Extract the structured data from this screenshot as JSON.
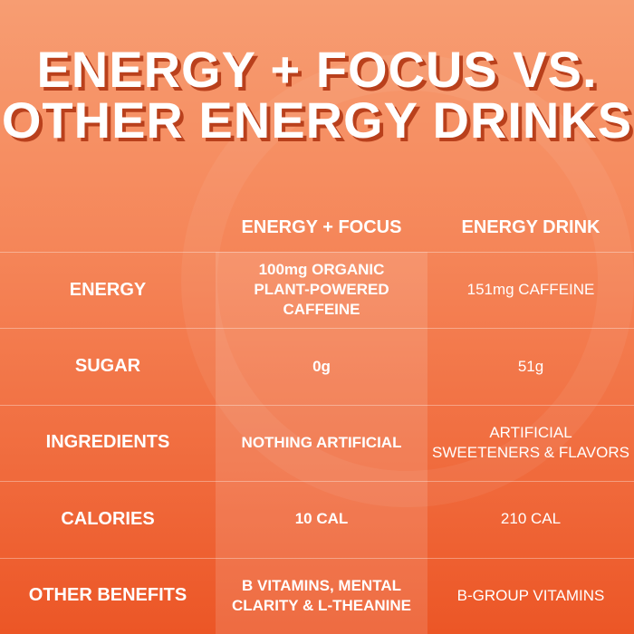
{
  "title": [
    "ENERGY + FOCUS VS.",
    "OTHER ENERGY DRINKS"
  ],
  "table": {
    "headers": [
      "ENERGY + FOCUS",
      "ENERGY DRINK"
    ],
    "rows": [
      {
        "label": "ENERGY",
        "cells": [
          [
            "100mg ORGANIC",
            "PLANT-POWERED",
            "CAFFEINE"
          ],
          [
            "151mg CAFFEINE"
          ]
        ]
      },
      {
        "label": "SUGAR",
        "cells": [
          [
            "0g"
          ],
          [
            "51g"
          ]
        ]
      },
      {
        "label": "INGREDIENTS",
        "cells": [
          [
            "NOTHING ARTIFICIAL"
          ],
          [
            "ARTIFICIAL",
            "SWEETENERS & FLAVORS"
          ]
        ]
      },
      {
        "label": "CALORIES",
        "cells": [
          [
            "10 CAL"
          ],
          [
            "210 CAL"
          ]
        ]
      },
      {
        "label": "OTHER BENEFITS",
        "cells": [
          [
            "B VITAMINS, MENTAL",
            "CLARITY &  L-THEANINE"
          ],
          [
            "B-GROUP VITAMINS"
          ]
        ]
      }
    ]
  }
}
